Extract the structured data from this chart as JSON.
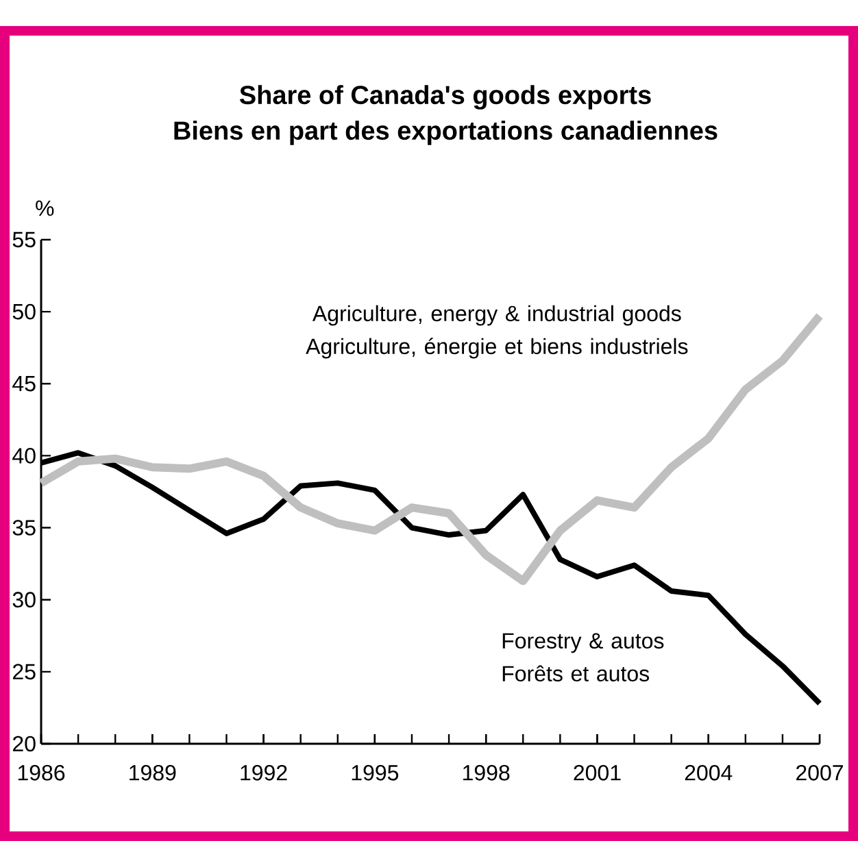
{
  "chart_data": {
    "type": "line",
    "title": "Share of Canada's goods exports",
    "subtitle": "Biens en part des exportations canadiennes",
    "ylabel": "%",
    "x": [
      1986,
      1987,
      1988,
      1989,
      1990,
      1991,
      1992,
      1993,
      1994,
      1995,
      1996,
      1997,
      1998,
      1999,
      2000,
      2001,
      2002,
      2003,
      2004,
      2005,
      2006,
      2007
    ],
    "xlim": [
      1986,
      2007
    ],
    "xticks": [
      1986,
      1989,
      1992,
      1995,
      1998,
      2001,
      2004,
      2007
    ],
    "ylim": [
      20,
      55
    ],
    "yticks": [
      20,
      25,
      30,
      35,
      40,
      45,
      50,
      55
    ],
    "grid": false,
    "legend": false,
    "marker": "none",
    "line_style": "solid",
    "series": [
      {
        "name": "Forestry & autos Forêts et autos",
        "color": "#000000",
        "values": [
          39.5,
          40.2,
          39.3,
          37.8,
          36.2,
          34.6,
          35.6,
          37.9,
          38.1,
          37.6,
          35.0,
          34.5,
          34.8,
          37.3,
          32.8,
          31.6,
          32.4,
          30.6,
          30.3,
          27.6,
          25.4,
          22.8
        ]
      },
      {
        "name": "Agriculture, energy & industrial goods Agriculture, énergie et biens industriels",
        "color": "#bfbfbf",
        "values": [
          38.1,
          39.6,
          39.8,
          39.2,
          39.1,
          39.6,
          38.6,
          36.4,
          35.3,
          34.8,
          36.4,
          36.0,
          33.1,
          31.3,
          34.8,
          36.9,
          36.4,
          39.2,
          41.2,
          44.6,
          46.6,
          49.7
        ]
      }
    ]
  }
}
